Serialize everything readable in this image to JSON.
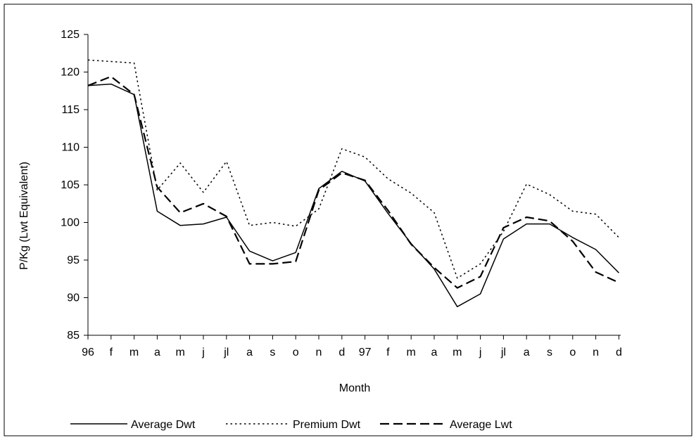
{
  "chart_data": {
    "type": "line",
    "title": "",
    "xlabel": "Month",
    "ylabel": "P/Kg  (Lwt Equivalent)",
    "categories": [
      "96",
      "f",
      "m",
      "a",
      "m",
      "j",
      "jl",
      "a",
      "s",
      "o",
      "n",
      "d",
      "97",
      "f",
      "m",
      "a",
      "m",
      "j",
      "jl",
      "a",
      "s",
      "o",
      "n",
      "d"
    ],
    "ylim": [
      85,
      125
    ],
    "yticks": [
      85,
      90,
      95,
      100,
      105,
      110,
      115,
      120,
      125
    ],
    "grid": false,
    "legend_position": "bottom",
    "series": [
      {
        "name": "Average Dwt",
        "style": "solid",
        "color": "#000000",
        "values": [
          118.2,
          118.4,
          117.0,
          101.5,
          99.6,
          99.8,
          100.7,
          96.2,
          94.9,
          96.0,
          104.5,
          106.8,
          105.5,
          101.2,
          97.2,
          93.8,
          88.8,
          90.5,
          97.8,
          99.8,
          99.8,
          98.0,
          96.4,
          93.3
        ]
      },
      {
        "name": "Premium Dwt",
        "style": "dotted",
        "color": "#000000",
        "values": [
          121.6,
          121.4,
          121.2,
          104.3,
          107.9,
          104.0,
          108.1,
          99.6,
          100.0,
          99.5,
          101.8,
          109.8,
          108.7,
          105.8,
          103.9,
          101.3,
          92.6,
          94.5,
          98.8,
          105.1,
          103.7,
          101.5,
          101.1,
          98.0
        ]
      },
      {
        "name": "Average Lwt",
        "style": "dashed",
        "color": "#000000",
        "values": [
          118.2,
          119.4,
          117.0,
          104.7,
          101.3,
          102.5,
          100.8,
          94.5,
          94.5,
          94.8,
          104.3,
          106.6,
          105.6,
          101.6,
          97.1,
          94.0,
          91.3,
          92.8,
          99.3,
          100.7,
          100.2,
          97.5,
          93.4,
          92.0
        ]
      }
    ]
  }
}
